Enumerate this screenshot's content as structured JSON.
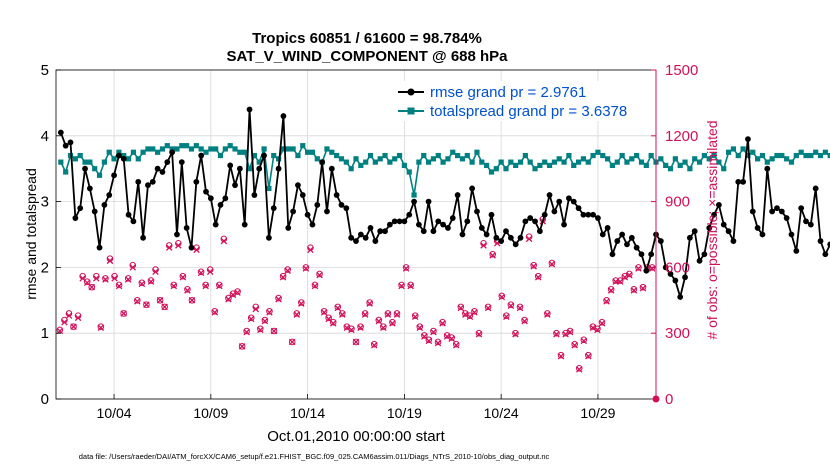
{
  "chart_data": {
    "type": "line",
    "title": "Tropics 60851 / 61600 = 98.784%",
    "subtitle": "SAT_V_WIND_COMPONENT @ 688 hPa",
    "xlabel": "Oct.01,2010 00:00:00 start",
    "ylabel": "rmse and totalspread",
    "y2label": "# of obs: o=possible; ×=assimilated",
    "footer": "data file: /Users/raeder/DAI/ATM_forcXX/CAM6_setup/f.e21.FHIST_BGC.f09_025.CAM6assim.011/Diags_NTrS_2010-10/obs_diag_output.nc",
    "xlim_days": [
      1.0,
      32.0
    ],
    "xticks": [
      {
        "day": 4,
        "label": "10/04"
      },
      {
        "day": 9,
        "label": "10/09"
      },
      {
        "day": 14,
        "label": "10/14"
      },
      {
        "day": 19,
        "label": "10/19"
      },
      {
        "day": 24,
        "label": "10/24"
      },
      {
        "day": 29,
        "label": "10/29"
      }
    ],
    "ylim": [
      0,
      5
    ],
    "yticks": [
      "0",
      "1",
      "2",
      "3",
      "4",
      "5"
    ],
    "y2lim": [
      0,
      1500
    ],
    "y2ticks": [
      "0",
      "300",
      "600",
      "900",
      "1200",
      "1500"
    ],
    "legend": {
      "position": "top-right",
      "entries": [
        "rmse grand pr = 2.9761",
        "totalspread grand pr = 3.6378"
      ]
    },
    "colors": {
      "rmse": "#000000",
      "totalspread": "#008080",
      "obs": "#d0105a",
      "legend_text": "#0050d0"
    },
    "x_start_day": 1.25,
    "x_step_days": 0.25,
    "series": [
      {
        "name": "rmse",
        "axis": "left",
        "values": [
          4.05,
          3.85,
          3.9,
          2.75,
          2.9,
          3.5,
          3.2,
          2.85,
          2.3,
          2.95,
          3.1,
          3.4,
          3.7,
          3.65,
          2.8,
          2.7,
          3.3,
          2.45,
          3.25,
          3.3,
          3.5,
          3.45,
          3.6,
          3.75,
          2.5,
          3.6,
          2.6,
          2.3,
          3.3,
          3.7,
          3.15,
          3.05,
          2.65,
          2.95,
          3.05,
          3.55,
          3.25,
          3.5,
          2.65,
          4.4,
          3.1,
          3.5,
          3.7,
          2.45,
          2.9,
          3.5,
          4.3,
          2.6,
          2.85,
          3.25,
          3.1,
          2.8,
          2.65,
          2.95,
          3.6,
          2.85,
          3.5,
          3.1,
          2.95,
          2.9,
          2.45,
          2.4,
          2.5,
          2.45,
          2.6,
          2.4,
          2.55,
          2.55,
          2.65,
          2.7,
          2.7,
          2.7,
          2.8,
          3.0,
          2.65,
          2.55,
          3.0,
          2.55,
          2.7,
          2.65,
          2.6,
          2.75,
          3.1,
          2.5,
          2.7,
          3.2,
          2.85,
          2.6,
          2.5,
          2.8,
          2.45,
          2.4,
          2.55,
          2.45,
          2.35,
          2.45,
          2.7,
          2.75,
          2.7,
          2.55,
          2.8,
          3.1,
          2.85,
          3.0,
          2.65,
          3.05,
          3.0,
          2.9,
          2.8,
          2.8,
          2.8,
          2.75,
          2.5,
          2.6,
          2.2,
          2.4,
          2.5,
          2.35,
          2.45,
          2.3,
          2.2,
          1.95,
          2.2,
          2.5,
          2.4,
          2.0,
          1.9,
          1.8,
          1.55,
          1.85,
          2.45,
          2.55,
          2.1,
          2.2,
          2.6,
          2.8,
          2.95,
          2.65,
          2.55,
          2.4,
          3.3,
          3.3,
          3.95,
          2.85,
          2.6,
          2.5,
          3.5,
          2.85,
          2.9,
          2.85,
          2.75,
          2.5,
          2.25,
          2.9,
          2.7,
          2.65,
          3.2,
          2.4,
          2.2,
          2.35,
          2.4
        ]
      },
      {
        "name": "totalspread",
        "axis": "left",
        "values": [
          3.6,
          3.45,
          3.7,
          3.65,
          3.7,
          3.6,
          3.6,
          3.5,
          3.4,
          3.6,
          3.75,
          3.65,
          3.75,
          3.7,
          3.65,
          3.75,
          3.65,
          3.75,
          3.8,
          3.8,
          3.75,
          3.8,
          3.85,
          3.8,
          3.8,
          3.85,
          3.85,
          3.8,
          3.85,
          3.8,
          3.75,
          3.8,
          3.8,
          3.7,
          3.8,
          3.85,
          3.8,
          3.75,
          3.75,
          3.5,
          3.7,
          3.6,
          3.8,
          3.2,
          3.7,
          3.65,
          3.8,
          3.8,
          3.8,
          3.7,
          3.85,
          3.75,
          3.75,
          3.65,
          3.6,
          3.8,
          3.75,
          3.7,
          3.65,
          3.6,
          3.5,
          3.65,
          3.55,
          3.6,
          3.7,
          3.6,
          3.65,
          3.7,
          3.6,
          3.65,
          3.7,
          3.55,
          3.45,
          3.1,
          3.6,
          3.7,
          3.6,
          3.65,
          3.7,
          3.6,
          3.65,
          3.75,
          3.7,
          3.65,
          3.7,
          3.6,
          3.75,
          3.6,
          3.55,
          3.45,
          3.5,
          3.6,
          3.5,
          3.6,
          3.55,
          3.6,
          3.7,
          3.6,
          3.5,
          3.55,
          3.6,
          3.55,
          3.6,
          3.65,
          3.6,
          3.7,
          3.55,
          3.6,
          3.65,
          3.6,
          3.7,
          3.75,
          3.7,
          3.65,
          3.55,
          3.6,
          3.7,
          3.6,
          3.65,
          3.7,
          3.6,
          3.55,
          3.7,
          3.6,
          3.65,
          3.55,
          3.5,
          3.65,
          3.55,
          3.6,
          3.5,
          3.65,
          3.6,
          3.7,
          3.65,
          3.7,
          3.6,
          3.5,
          3.75,
          3.8,
          3.7,
          3.8,
          3.7,
          3.75,
          3.65,
          3.7,
          3.6,
          3.65,
          3.7,
          3.7,
          3.65,
          3.6,
          3.7,
          3.75,
          3.7,
          3.7,
          3.75,
          3.7,
          3.75,
          3.7
        ]
      },
      {
        "name": "obs_possible",
        "axis": "right",
        "values": [
          315,
          360,
          390,
          330,
          380,
          560,
          535,
          510,
          560,
          330,
          550,
          640,
          560,
          520,
          390,
          550,
          610,
          450,
          530,
          430,
          540,
          590,
          450,
          420,
          700,
          520,
          710,
          560,
          500,
          450,
          690,
          580,
          520,
          590,
          400,
          520,
          730,
          460,
          480,
          490,
          240,
          310,
          370,
          420,
          320,
          360,
          400,
          310,
          460,
          560,
          590,
          260,
          390,
          440,
          600,
          690,
          520,
          570,
          400,
          370,
          350,
          420,
          390,
          330,
          320,
          260,
          330,
          390,
          440,
          250,
          360,
          330,
          390,
          350,
          390,
          520,
          600,
          520,
          380,
          330,
          290,
          270,
          310,
          260,
          350,
          290,
          280,
          250,
          420,
          390,
          380,
          400,
          300,
          710,
          420,
          660,
          720,
          470,
          380,
          430,
          300,
          420,
          360,
          740,
          610,
          560,
          820,
          390,
          620,
          300,
          200,
          300,
          310,
          250,
          140,
          270,
          200,
          330,
          320,
          350,
          450,
          500,
          540,
          540,
          560,
          570,
          500,
          600,
          510,
          600,
          600
        ]
      },
      {
        "name": "obs_assimilated",
        "axis": "right",
        "values": [
          310,
          350,
          380,
          330,
          370,
          550,
          530,
          510,
          550,
          325,
          545,
          630,
          550,
          515,
          390,
          545,
          600,
          445,
          525,
          430,
          535,
          580,
          450,
          420,
          690,
          515,
          700,
          555,
          495,
          450,
          680,
          575,
          515,
          580,
          395,
          515,
          720,
          455,
          475,
          485,
          240,
          305,
          365,
          410,
          315,
          355,
          395,
          310,
          455,
          555,
          585,
          260,
          385,
          435,
          595,
          680,
          515,
          565,
          395,
          365,
          345,
          415,
          385,
          325,
          315,
          260,
          325,
          385,
          435,
          245,
          355,
          325,
          385,
          345,
          385,
          515,
          595,
          515,
          375,
          325,
          285,
          265,
          305,
          255,
          345,
          285,
          275,
          245,
          415,
          385,
          375,
          395,
          295,
          700,
          415,
          655,
          710,
          465,
          375,
          425,
          295,
          415,
          355,
          730,
          605,
          555,
          810,
          385,
          615,
          295,
          195,
          295,
          305,
          245,
          135,
          265,
          195,
          325,
          315,
          345,
          445,
          495,
          535,
          535,
          555,
          565,
          495,
          595,
          505,
          595,
          595
        ]
      },
      {
        "name": "obs_end_marker",
        "axis": "right",
        "values": [
          0
        ]
      }
    ]
  }
}
